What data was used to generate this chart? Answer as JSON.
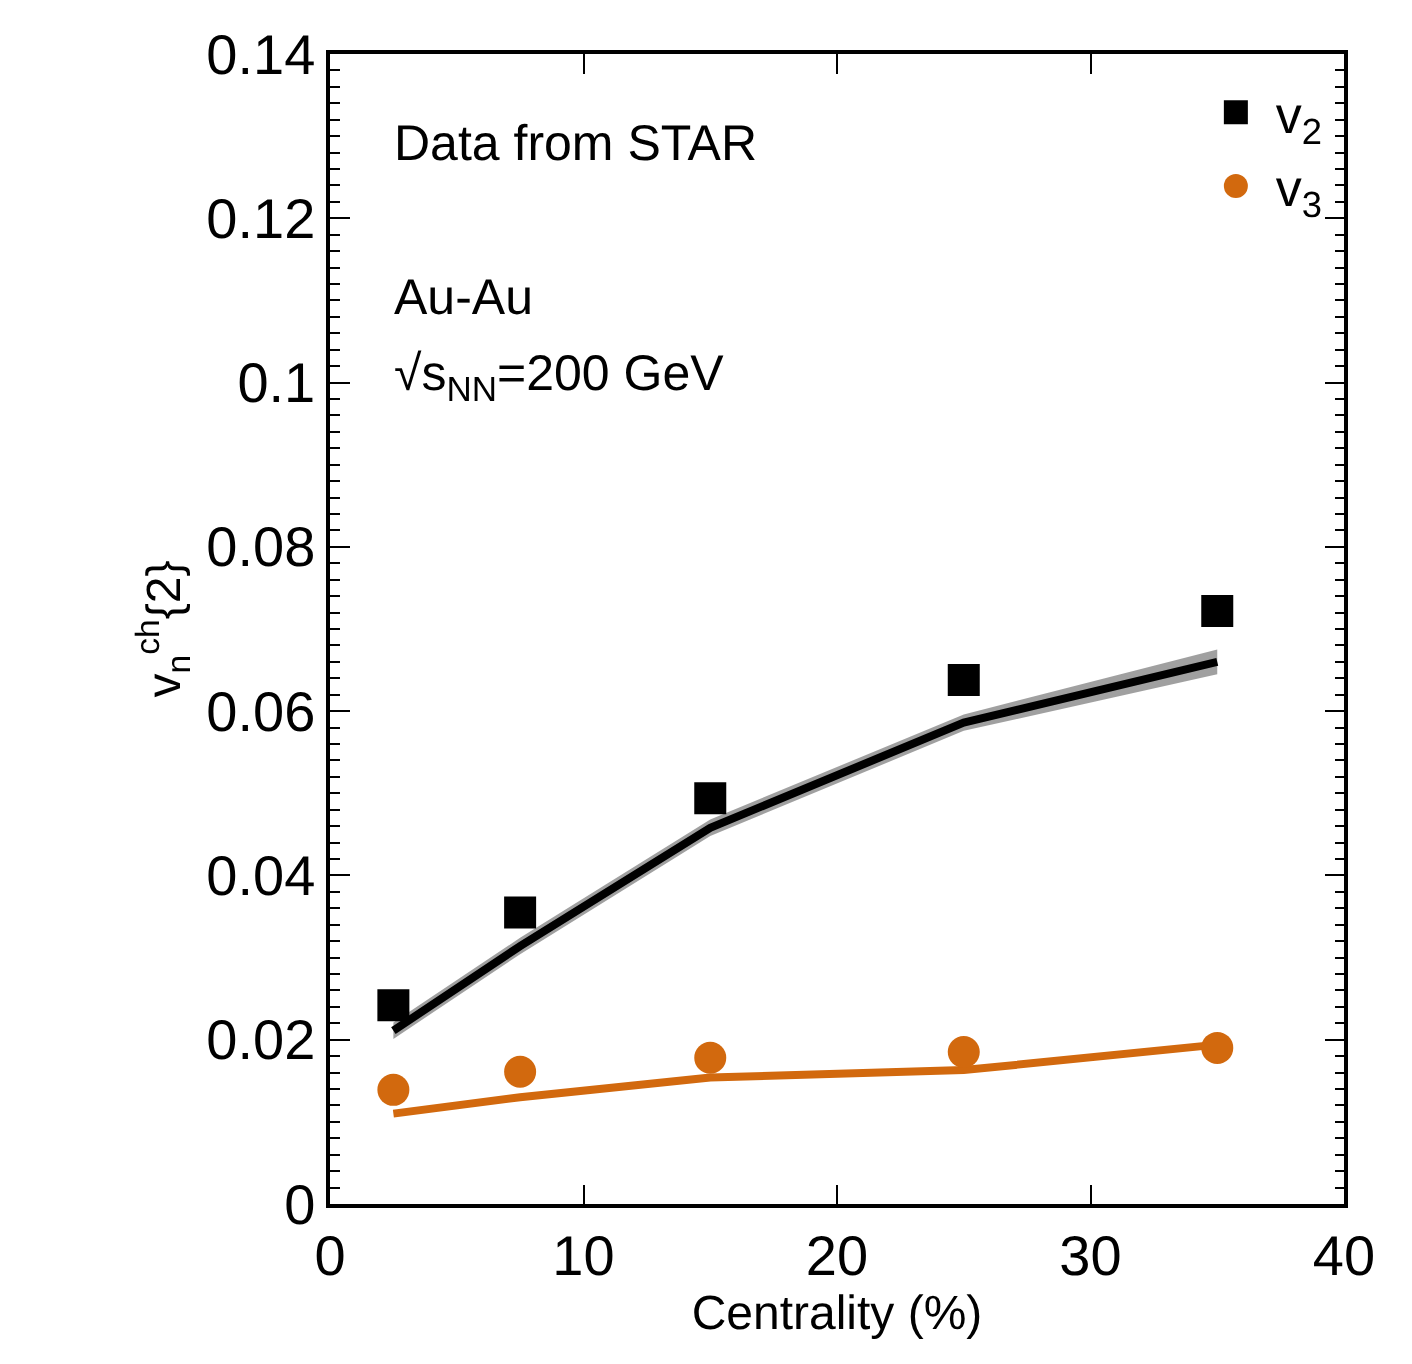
{
  "chart_data": {
    "type": "scatter",
    "xlabel": "Centrality (%)",
    "ylabel": "v$_{n}$$^{ch}${2}",
    "xlim": [
      0,
      40
    ],
    "xticks": [
      0,
      10,
      20,
      30,
      40
    ],
    "ylim": [
      0,
      0.14
    ],
    "yticks": [
      0,
      0.02,
      0.04,
      0.06,
      0.08,
      0.1,
      0.12,
      0.14
    ],
    "legend": "top right",
    "annotations": [
      "Data from STAR",
      "Au-Au",
      "√s$_{NN}$=200 GeV"
    ],
    "series": [
      {
        "type": "line",
        "color": "#000000",
        "x": [
          2.5,
          7.5,
          15,
          25,
          35
        ],
        "values": [
          0.0211,
          0.0314,
          0.0458,
          0.0586,
          0.066
        ],
        "lower": [
          0.0201,
          0.0304,
          0.0448,
          0.0576,
          0.0645
        ],
        "upper": [
          0.0221,
          0.0324,
          0.0468,
          0.0596,
          0.0675
        ]
      },
      {
        "type": "line",
        "color": "#d2690e",
        "x": [
          2.5,
          7.5,
          15,
          25,
          35
        ],
        "values": [
          0.011,
          0.013,
          0.0154,
          0.0163,
          0.0194
        ]
      },
      {
        "name": "v$_{2}$",
        "color": "#000000",
        "marker": "square",
        "x": [
          2.5,
          7.5,
          15,
          25,
          35
        ],
        "values": [
          0.0242,
          0.0355,
          0.0494,
          0.0638,
          0.0722
        ]
      },
      {
        "name": "v$_{3}$",
        "color": "#d2690e",
        "marker": "circle",
        "x": [
          2.5,
          7.5,
          15,
          25,
          35
        ],
        "values": [
          0.0139,
          0.0161,
          0.0178,
          0.0185,
          0.019
        ]
      }
    ]
  }
}
